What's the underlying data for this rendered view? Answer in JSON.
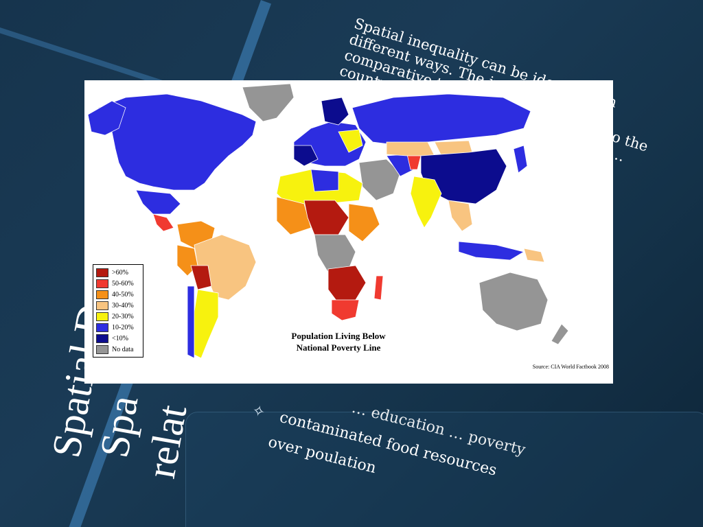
{
  "slide": {
    "title_lines": [
      "Spatial D",
      "Spa",
      "relat"
    ],
    "body_text": "Spatial inequality can be identified in different ways. The inequality can be comparative to the rest of the world; to the country… areas … hard to … qualities … world,",
    "bullets": [
      {
        "icon": "star-outline-icon",
        "text": "… education … poverty"
      },
      {
        "icon": "star-outline-icon",
        "text": "contaminated food resources"
      },
      {
        "icon": "star-outline-icon",
        "text": "over poulation"
      }
    ]
  },
  "map": {
    "title": "Population Living Below National Poverty Line",
    "title_lines": [
      "Population Living Below",
      "National Poverty Line"
    ],
    "source": "Source: CIA World Factbook 2008",
    "legend": [
      {
        "label": ">60%",
        "color": "#b41a10"
      },
      {
        "label": "50-60%",
        "color": "#f03a30"
      },
      {
        "label": "40-50%",
        "color": "#f59018"
      },
      {
        "label": "30-40%",
        "color": "#f8c480"
      },
      {
        "label": "20-30%",
        "color": "#f7f20e"
      },
      {
        "label": "10-20%",
        "color": "#2d2de0"
      },
      {
        "label": "<10%",
        "color": "#0c0c8e"
      },
      {
        "label": "No data",
        "color": "#959595"
      }
    ]
  }
}
